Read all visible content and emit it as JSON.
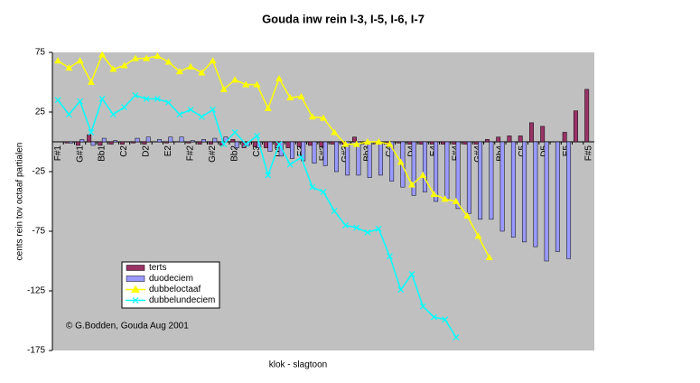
{
  "chart_data": {
    "type": "combo",
    "title": "Gouda inw rein I-3, I-5, I-6, I-7",
    "x_label": "klok - slagtoon",
    "y_label": "cents rein tov octaaf partialen",
    "annotation": "© G.Bodden, Gouda Aug 2001",
    "categories": [
      "F#1",
      null,
      "G#1",
      null,
      "Bb1",
      null,
      "C2",
      null,
      "D2",
      null,
      "E2",
      null,
      "F#2",
      null,
      "G#2",
      null,
      "Bb2",
      null,
      "C3",
      null,
      "D3",
      null,
      "E3",
      null,
      "F#3",
      null,
      "G#3",
      null,
      "Bb3",
      null,
      "C4",
      null,
      "D4",
      null,
      "E4",
      null,
      "F#4",
      null,
      "G#4",
      null,
      "Bb4",
      null,
      "C5",
      null,
      "D5",
      null,
      "E5",
      null,
      "F#5"
    ],
    "ylim": [
      -175,
      75
    ],
    "yticks": [
      -175,
      -125,
      -75,
      -25,
      25,
      75
    ],
    "legend": "left",
    "series": [
      {
        "name": "terts",
        "type": "bar",
        "color": "#993366",
        "values": [
          0,
          -1,
          -3,
          6,
          -3,
          -2,
          -2,
          -1,
          -2,
          0,
          -1,
          0,
          -1,
          -2,
          -2,
          -3,
          2,
          -5,
          -4,
          -5,
          -5,
          -5,
          -4,
          -3,
          -4,
          -2,
          -2,
          4,
          -2,
          -2,
          -2,
          -1,
          -2,
          -2,
          -2,
          -2,
          -2,
          -2,
          -2,
          2,
          4,
          5,
          5,
          16,
          13,
          0,
          8,
          26,
          44
        ]
      },
      {
        "name": "duodeciem",
        "type": "bar",
        "color": "#9999ff",
        "values": [
          0,
          -1,
          2,
          -3,
          3,
          1,
          0,
          3,
          4,
          2,
          4,
          4,
          1,
          2,
          3,
          4,
          -5,
          -3,
          -5,
          -8,
          -12,
          -14,
          -16,
          -18,
          -20,
          -25,
          -28,
          -28,
          -30,
          -28,
          -33,
          -38,
          -45,
          -42,
          -50,
          -48,
          -56,
          -60,
          -65,
          -65,
          -75,
          -80,
          -84,
          -88,
          -100,
          -92,
          -98,
          0,
          0
        ]
      },
      {
        "name": "dubbeloctaaf",
        "type": "line",
        "marker": "triangle",
        "color": "#ffff00",
        "values": [
          68,
          62,
          68,
          50,
          73,
          61,
          64,
          70,
          70,
          72,
          67,
          59,
          63,
          58,
          68,
          44,
          52,
          48,
          48,
          28,
          53,
          37,
          38,
          21,
          20,
          8,
          -2,
          -2,
          0,
          0,
          -2,
          -17,
          -36,
          -28,
          -44,
          -48,
          -50,
          -62,
          -79,
          -97,
          null,
          null,
          null,
          null,
          null,
          null,
          null,
          null,
          null
        ]
      },
      {
        "name": "dubbelundeciem",
        "type": "line",
        "marker": "x",
        "color": "#00ffff",
        "values": [
          35,
          23,
          34,
          8,
          36,
          23,
          29,
          39,
          36,
          36,
          33,
          23,
          27,
          21,
          27,
          -2,
          8,
          -2,
          5,
          -28,
          -2,
          -19,
          -13,
          -38,
          -42,
          -58,
          -70,
          -72,
          -76,
          -73,
          -96,
          -124,
          -111,
          -138,
          -147,
          -149,
          -164,
          null,
          null,
          null,
          null,
          null,
          null,
          null,
          null,
          null,
          null,
          null,
          null
        ]
      }
    ]
  }
}
